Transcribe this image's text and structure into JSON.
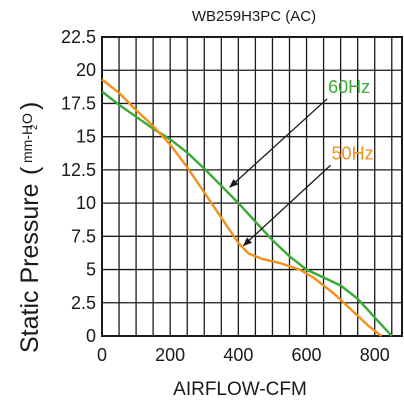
{
  "chart_data": {
    "type": "line",
    "title": "WB259H3PC (AC)",
    "xlabel": "AIRFLOW-CFM",
    "ylabel": {
      "main": "Static Pressure",
      "unit_open": "(",
      "unit_text": "mm-H",
      "unit_sub": "2",
      "unit_tail": "O",
      "unit_close": ")"
    },
    "xlim": [
      0,
      880
    ],
    "ylim": [
      0,
      22.5
    ],
    "x_ticks": [
      0,
      200,
      400,
      600,
      800
    ],
    "x_tick_labels": [
      "0",
      "200",
      "400",
      "600",
      "800"
    ],
    "y_ticks": [
      0,
      2.5,
      5,
      7.5,
      10,
      12.5,
      15,
      17.5,
      20,
      22.5
    ],
    "y_tick_labels": [
      "0",
      "2.5",
      "5",
      "7.5",
      "10",
      "12.5",
      "15",
      "17.5",
      "20",
      "22.5"
    ],
    "grid": true,
    "series": [
      {
        "name": "60Hz",
        "color": "#3aaa35",
        "x": [
          0,
          50,
          100,
          150,
          200,
          250,
          300,
          350,
          400,
          450,
          500,
          550,
          600,
          650,
          700,
          750,
          800,
          850
        ],
        "y": [
          18.4,
          17.4,
          16.5,
          15.6,
          14.8,
          13.8,
          12.6,
          11.3,
          10.0,
          8.6,
          7.2,
          6.0,
          5.0,
          4.4,
          3.8,
          2.8,
          1.4,
          0
        ]
      },
      {
        "name": "50Hz",
        "color": "#f39019",
        "x": [
          0,
          50,
          100,
          150,
          200,
          250,
          300,
          350,
          400,
          430,
          470,
          520,
          580,
          620,
          680,
          730,
          780,
          820
        ],
        "y": [
          19.3,
          18.3,
          17.0,
          15.8,
          14.4,
          12.7,
          10.8,
          8.9,
          7.0,
          6.2,
          5.8,
          5.5,
          5.0,
          4.4,
          3.2,
          2.0,
          0.8,
          0
        ]
      }
    ],
    "annotations": [
      {
        "label": "60Hz",
        "color": "#3aaa35",
        "label_at": [
          725,
          18.3
        ],
        "point_to": [
          375,
          11.2
        ]
      },
      {
        "label": "50Hz",
        "color": "#f39019",
        "label_at": [
          735,
          13.3
        ],
        "point_to": [
          415,
          6.8
        ]
      }
    ]
  }
}
